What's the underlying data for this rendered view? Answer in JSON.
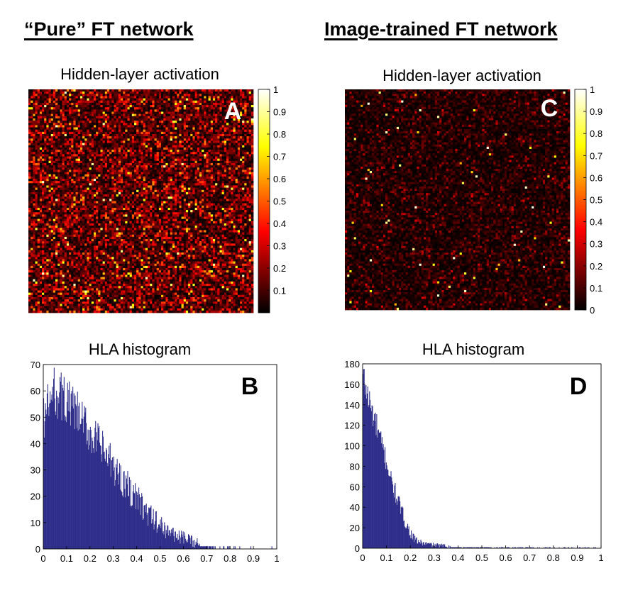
{
  "titles": {
    "left": "“Pure” FT network",
    "right": "Image-trained FT network"
  },
  "chart_data": [
    {
      "type": "heatmap",
      "panel": "A",
      "title": "Hidden-layer activation",
      "grid_size": [
        100,
        100
      ],
      "value_range": [
        0,
        1
      ],
      "mean_value": 0.2,
      "colormap": "hot",
      "colorbar_ticks": [
        "0.1",
        "0.2",
        "0.3",
        "0.4",
        "0.5",
        "0.6",
        "0.7",
        "0.8",
        "0.9",
        "1"
      ]
    },
    {
      "type": "bar",
      "panel": "B",
      "title": "HLA histogram",
      "xlim": [
        0,
        1
      ],
      "ylim": [
        0,
        70
      ],
      "xticks": [
        "0",
        "0.1",
        "0.2",
        "0.3",
        "0.4",
        "0.5",
        "0.6",
        "0.7",
        "0.8",
        "0.9",
        "1"
      ],
      "yticks": [
        "0",
        "10",
        "20",
        "30",
        "40",
        "50",
        "60",
        "70"
      ],
      "bin_width": 0.0025,
      "shape": "peaks at ~60 counts near 0.05, decays to ~0 by 0.75, sparse tail to 0.95",
      "points": [
        [
          0,
          50
        ],
        [
          0.05,
          60
        ],
        [
          0.1,
          56
        ],
        [
          0.15,
          50
        ],
        [
          0.2,
          44
        ],
        [
          0.25,
          38
        ],
        [
          0.3,
          31
        ],
        [
          0.35,
          25
        ],
        [
          0.4,
          19
        ],
        [
          0.45,
          13
        ],
        [
          0.5,
          9
        ],
        [
          0.55,
          6
        ],
        [
          0.6,
          4
        ],
        [
          0.65,
          2.5
        ],
        [
          0.7,
          1.2
        ],
        [
          0.75,
          0.5
        ],
        [
          0.8,
          0.3
        ],
        [
          0.9,
          0.1
        ],
        [
          1,
          0
        ]
      ]
    },
    {
      "type": "heatmap",
      "panel": "C",
      "title": "Hidden-layer activation",
      "grid_size": [
        100,
        100
      ],
      "value_range": [
        0,
        1
      ],
      "mean_value": 0.08,
      "colormap": "hot",
      "colorbar_ticks": [
        "0",
        "0.1",
        "0.2",
        "0.3",
        "0.4",
        "0.5",
        "0.6",
        "0.7",
        "0.8",
        "0.9",
        "1"
      ]
    },
    {
      "type": "bar",
      "panel": "D",
      "title": "HLA histogram",
      "xlim": [
        0,
        1
      ],
      "ylim": [
        0,
        180
      ],
      "xticks": [
        "0",
        "0.1",
        "0.2",
        "0.3",
        "0.4",
        "0.5",
        "0.6",
        "0.7",
        "0.8",
        "0.9",
        "1"
      ],
      "yticks": [
        "0",
        "20",
        "40",
        "60",
        "80",
        "100",
        "120",
        "140",
        "160",
        "180"
      ],
      "bin_width": 0.0025,
      "shape": "peaks at ~170 counts near 0, decays sharply to ~5 by 0.25, flat tail to 1",
      "points": [
        [
          0,
          170
        ],
        [
          0.02,
          150
        ],
        [
          0.05,
          125
        ],
        [
          0.08,
          100
        ],
        [
          0.1,
          85
        ],
        [
          0.12,
          65
        ],
        [
          0.15,
          45
        ],
        [
          0.18,
          25
        ],
        [
          0.2,
          15
        ],
        [
          0.22,
          8
        ],
        [
          0.25,
          5
        ],
        [
          0.3,
          3
        ],
        [
          0.4,
          1.5
        ],
        [
          0.5,
          1
        ],
        [
          0.7,
          0.5
        ],
        [
          1,
          0.3
        ]
      ]
    }
  ],
  "colors": {
    "bar": "#2e2e8a",
    "axis": "#000000"
  }
}
